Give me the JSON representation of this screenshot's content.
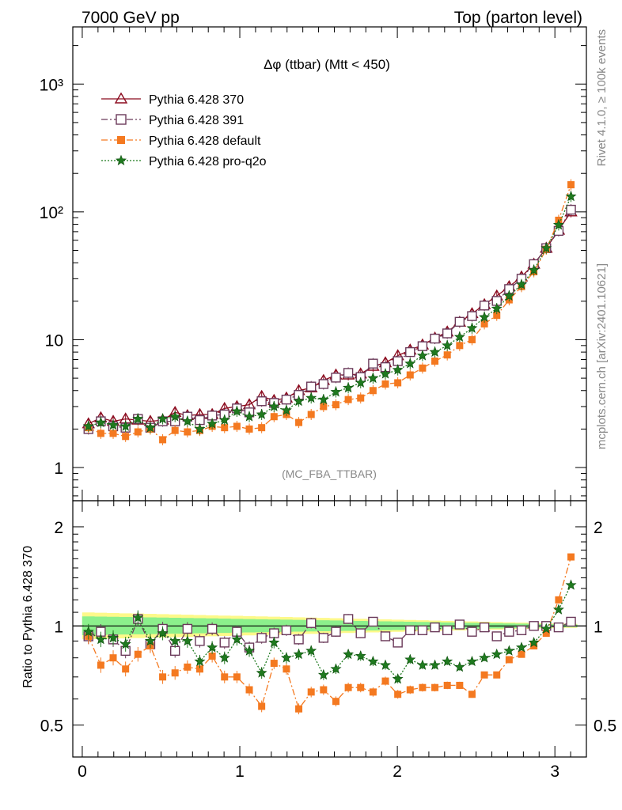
{
  "header": {
    "left": "7000 GeV pp",
    "right": "Top (parton level)"
  },
  "side_labels": {
    "rivet": "Rivet 4.1.0, ≥ 100k events",
    "mcplots": "mcplots.cern.ch [arXiv:2401.10621]"
  },
  "chart_data": {
    "type": "line",
    "title": "Δφ (ttbar) (Mtt < 450)",
    "watermark": "(MC_FBA_TTBAR)",
    "xlabel": "",
    "ylabel": "",
    "ratio_ylabel": "Ratio to Pythia 6.428 370",
    "xlim": [
      -0.06,
      3.2
    ],
    "ylim": [
      0.55,
      2800
    ],
    "ratio_ylim": [
      0.4,
      2.4
    ],
    "yscale": "log",
    "x_ticks": [
      "0",
      "1",
      "2",
      "3"
    ],
    "y_ticks": [
      "1",
      "10",
      "10²",
      "10³"
    ],
    "ratio_ticks": [
      "0.5",
      "1",
      "2"
    ],
    "legend_position": "top-left",
    "x": [
      0.0393,
      0.1178,
      0.1963,
      0.2749,
      0.3534,
      0.432,
      0.5105,
      0.589,
      0.6676,
      0.7461,
      0.8247,
      0.9032,
      0.9817,
      1.0603,
      1.1388,
      1.2174,
      1.2959,
      1.3744,
      1.453,
      1.5315,
      1.6101,
      1.6886,
      1.7671,
      1.8457,
      1.9242,
      2.0028,
      2.0813,
      2.1598,
      2.2384,
      2.3169,
      2.3955,
      2.474,
      2.5525,
      2.6311,
      2.7096,
      2.7882,
      2.8667,
      2.9452,
      3.0238,
      3.1023
    ],
    "series": [
      {
        "name": "Pythia 6.428 370",
        "color": "#8b0a1e",
        "marker": "triangle",
        "line": "solid",
        "values": [
          2.2,
          2.45,
          2.3,
          2.4,
          2.35,
          2.3,
          2.35,
          2.7,
          2.55,
          2.6,
          2.6,
          2.9,
          3.0,
          3.1,
          3.6,
          3.35,
          3.5,
          4.0,
          4.2,
          4.8,
          5.3,
          5.3,
          5.4,
          6.2,
          6.6,
          7.5,
          8.3,
          9.1,
          10.3,
          11.5,
          13.7,
          16.0,
          18.8,
          22.0,
          26.0,
          31.0,
          39.0,
          52.0,
          72.0,
          100.0
        ],
        "ratio": [
          1.0,
          1.0,
          1.0,
          1.0,
          1.0,
          1.0,
          1.0,
          1.0,
          1.0,
          1.0,
          1.0,
          1.0,
          1.0,
          1.0,
          1.0,
          1.0,
          1.0,
          1.0,
          1.0,
          1.0,
          1.0,
          1.0,
          1.0,
          1.0,
          1.0,
          1.0,
          1.0,
          1.0,
          1.0,
          1.0,
          1.0,
          1.0,
          1.0,
          1.0,
          1.0,
          1.0,
          1.0,
          1.0,
          1.0,
          1.0
        ]
      },
      {
        "name": "Pythia 6.428 391",
        "color": "#6b3a5a",
        "marker": "square-open",
        "line": "dashdot",
        "values": [
          2.0,
          2.3,
          2.1,
          2.05,
          2.4,
          2.05,
          2.3,
          2.3,
          2.5,
          2.35,
          2.55,
          2.6,
          2.9,
          2.7,
          3.3,
          3.2,
          3.4,
          3.7,
          4.3,
          4.5,
          5.05,
          5.5,
          5.1,
          6.5,
          6.1,
          6.8,
          8.0,
          8.9,
          10.2,
          11.2,
          13.8,
          15.3,
          18.5,
          20.1,
          24.9,
          30.0,
          39.0,
          52.0,
          71.0,
          104.0
        ],
        "ratio": [
          0.93,
          0.96,
          0.91,
          0.84,
          1.05,
          0.88,
          0.98,
          0.84,
          0.98,
          0.9,
          0.98,
          0.89,
          0.96,
          0.86,
          0.92,
          0.95,
          0.97,
          0.91,
          1.02,
          0.92,
          0.96,
          1.05,
          0.95,
          1.03,
          0.93,
          0.89,
          0.97,
          0.97,
          0.99,
          0.97,
          1.01,
          0.96,
          0.99,
          0.93,
          0.96,
          0.97,
          1.0,
          1.0,
          0.99,
          1.03
        ]
      },
      {
        "name": "Pythia 6.428 default",
        "color": "#f47920",
        "marker": "square-filled",
        "line": "dashdot",
        "values": [
          2.05,
          1.85,
          1.85,
          1.75,
          1.9,
          2.0,
          1.65,
          1.95,
          1.9,
          1.95,
          2.1,
          2.05,
          2.1,
          2.0,
          2.05,
          2.5,
          2.6,
          2.25,
          2.6,
          3.0,
          3.1,
          3.4,
          3.5,
          4.0,
          4.5,
          4.6,
          5.3,
          6.0,
          6.8,
          7.6,
          9.0,
          10.0,
          13.3,
          15.5,
          20.5,
          26.0,
          34.0,
          51.0,
          86.0,
          163.0
        ],
        "ratio": [
          0.93,
          0.76,
          0.8,
          0.74,
          0.82,
          0.87,
          0.7,
          0.72,
          0.75,
          0.74,
          0.81,
          0.7,
          0.7,
          0.64,
          0.57,
          0.77,
          0.74,
          0.56,
          0.63,
          0.64,
          0.59,
          0.65,
          0.65,
          0.63,
          0.68,
          0.62,
          0.64,
          0.65,
          0.65,
          0.66,
          0.66,
          0.62,
          0.71,
          0.71,
          0.79,
          0.82,
          0.87,
          0.95,
          1.2,
          1.62
        ]
      },
      {
        "name": "Pythia 6.428 pro-q2o",
        "color": "#1f7a1f",
        "marker": "star",
        "line": "dotted",
        "values": [
          2.1,
          2.25,
          2.15,
          2.1,
          2.4,
          2.05,
          2.4,
          2.5,
          2.3,
          2.0,
          2.2,
          2.35,
          2.75,
          2.5,
          2.6,
          3.0,
          2.8,
          3.3,
          3.5,
          3.4,
          3.9,
          4.2,
          4.6,
          5.0,
          5.4,
          5.8,
          6.5,
          7.5,
          8.0,
          9.0,
          10.5,
          12.3,
          15.0,
          17.5,
          22.0,
          27.0,
          35.0,
          52.0,
          79.0,
          132.0
        ],
        "ratio": [
          0.96,
          0.91,
          0.92,
          0.88,
          1.06,
          0.9,
          0.95,
          0.9,
          0.9,
          0.78,
          0.86,
          0.8,
          0.91,
          0.84,
          0.72,
          0.89,
          0.8,
          0.82,
          0.84,
          0.71,
          0.74,
          0.82,
          0.81,
          0.78,
          0.76,
          0.69,
          0.79,
          0.76,
          0.76,
          0.78,
          0.75,
          0.78,
          0.8,
          0.82,
          0.84,
          0.86,
          0.89,
          0.98,
          1.12,
          1.33
        ]
      }
    ]
  }
}
